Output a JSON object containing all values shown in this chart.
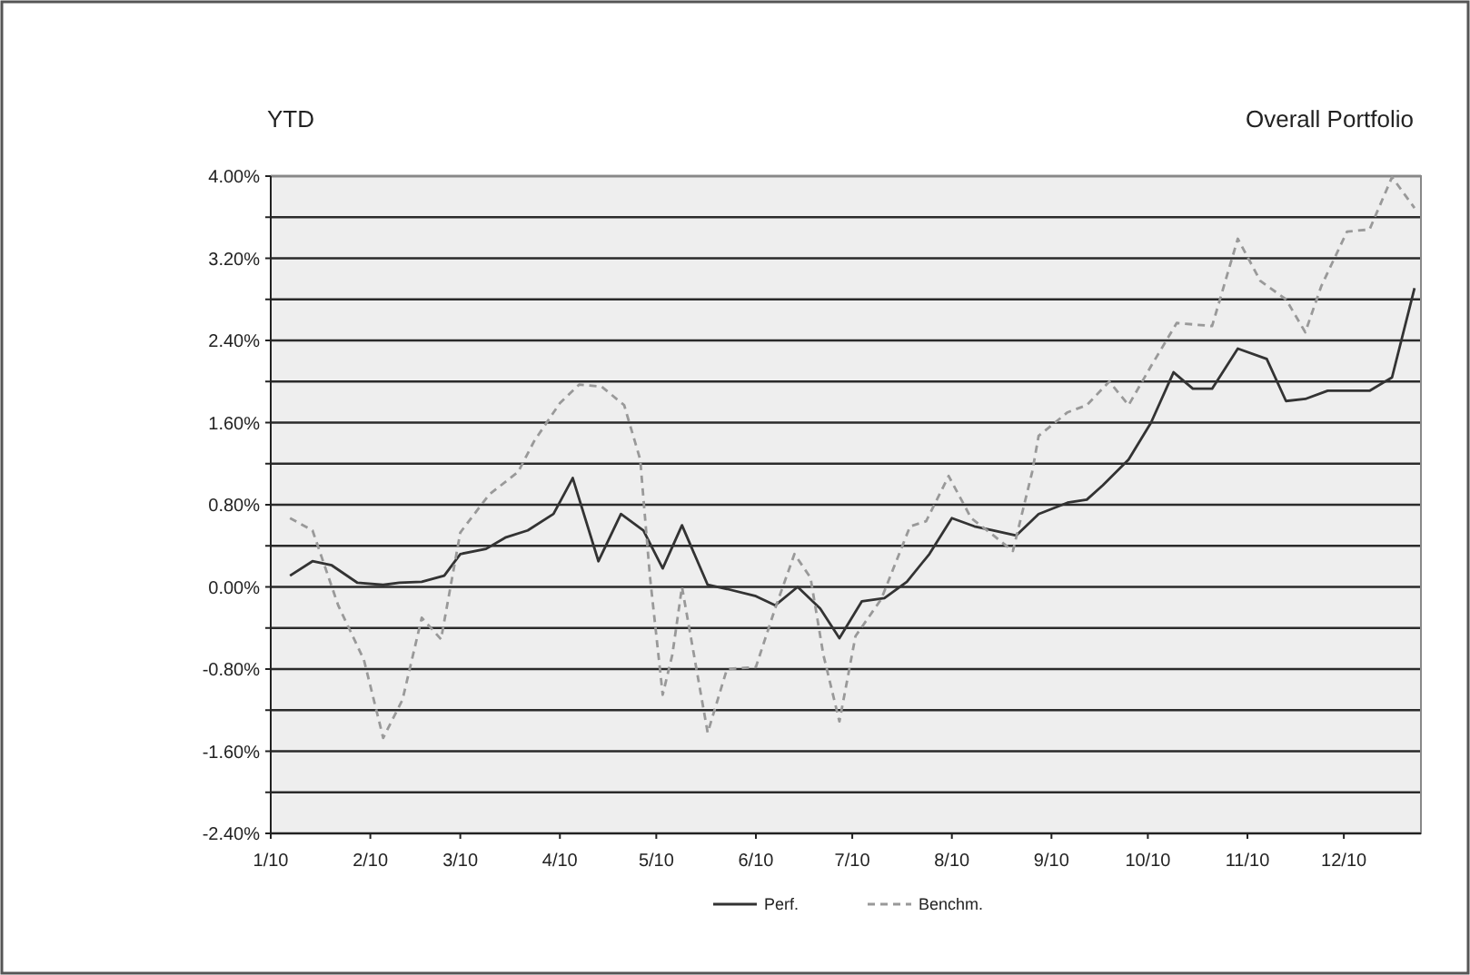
{
  "chart_data": {
    "type": "line",
    "title": "YTD",
    "subtitle": "Overall Portfolio",
    "grid": "y",
    "legend": "bottom",
    "xlim": [
      "2010-01-01",
      "2010-12-25"
    ],
    "xticks": [
      {
        "value": "2010-01-01",
        "label": "1/10"
      },
      {
        "value": "2010-02-01",
        "label": "2/10"
      },
      {
        "value": "2010-03-01",
        "label": "3/10"
      },
      {
        "value": "2010-04-01",
        "label": "4/10"
      },
      {
        "value": "2010-05-01",
        "label": "5/10"
      },
      {
        "value": "2010-06-01",
        "label": "6/10"
      },
      {
        "value": "2010-07-01",
        "label": "7/10"
      },
      {
        "value": "2010-08-01",
        "label": "8/10"
      },
      {
        "value": "2010-09-01",
        "label": "9/10"
      },
      {
        "value": "2010-10-01",
        "label": "10/10"
      },
      {
        "value": "2010-11-01",
        "label": "11/10"
      },
      {
        "value": "2010-12-01",
        "label": "12/10"
      }
    ],
    "ylim": [
      -2.4,
      4.0
    ],
    "yticks": [
      {
        "value": -2.4,
        "label": "-2.40%"
      },
      {
        "value": -2.0,
        "label": null
      },
      {
        "value": -1.6,
        "label": "-1.60%"
      },
      {
        "value": -1.2,
        "label": null
      },
      {
        "value": -0.8,
        "label": "-0.80%"
      },
      {
        "value": -0.4,
        "label": null
      },
      {
        "value": 0,
        "label": "0.00%"
      },
      {
        "value": 0.4,
        "label": null
      },
      {
        "value": 0.8,
        "label": "0.80%"
      },
      {
        "value": 1.2,
        "label": null
      },
      {
        "value": 1.6,
        "label": "1.60%"
      },
      {
        "value": 2.0,
        "label": null
      },
      {
        "value": 2.4,
        "label": "2.40%"
      },
      {
        "value": 2.8,
        "label": null
      },
      {
        "value": 3.2,
        "label": "3.20%"
      },
      {
        "value": 3.6,
        "label": null
      },
      {
        "value": 4.0,
        "label": "4.00%"
      }
    ],
    "series": [
      {
        "name": "Perf.",
        "color": "#333333",
        "line_style": "solid",
        "x": [
          "2010-01-07",
          "2010-01-14",
          "2010-01-20",
          "2010-01-28",
          "2010-02-05",
          "2010-02-10",
          "2010-02-17",
          "2010-02-24",
          "2010-03-01",
          "2010-03-09",
          "2010-03-15",
          "2010-03-22",
          "2010-03-30",
          "2010-04-05",
          "2010-04-13",
          "2010-04-20",
          "2010-04-27",
          "2010-05-03",
          "2010-05-09",
          "2010-05-17",
          "2010-05-23",
          "2010-06-01",
          "2010-06-07",
          "2010-06-14",
          "2010-06-21",
          "2010-06-27",
          "2010-07-04",
          "2010-07-11",
          "2010-07-18",
          "2010-07-25",
          "2010-08-01",
          "2010-08-08",
          "2010-08-14",
          "2010-08-21",
          "2010-08-28",
          "2010-09-06",
          "2010-09-12",
          "2010-09-17",
          "2010-09-25",
          "2010-10-02",
          "2010-10-09",
          "2010-10-15",
          "2010-10-21",
          "2010-10-29",
          "2010-11-07",
          "2010-11-13",
          "2010-11-19",
          "2010-11-26",
          "2010-12-09",
          "2010-12-16",
          "2010-12-23"
        ],
        "values": [
          0.11,
          0.25,
          0.21,
          0.04,
          0.02,
          0.04,
          0.05,
          0.11,
          0.32,
          0.37,
          0.48,
          0.55,
          0.71,
          1.06,
          0.25,
          0.71,
          0.55,
          0.18,
          0.6,
          0.02,
          -0.02,
          -0.09,
          -0.18,
          0.0,
          -0.21,
          -0.5,
          -0.14,
          -0.11,
          0.05,
          0.32,
          0.67,
          0.59,
          0.55,
          0.5,
          0.71,
          0.82,
          0.85,
          0.99,
          1.24,
          1.6,
          2.09,
          1.93,
          1.93,
          2.32,
          2.22,
          1.81,
          1.83,
          1.91,
          1.91,
          2.04,
          2.91
        ]
      },
      {
        "name": "Benchm.",
        "color": "#999999",
        "line_style": "dashed",
        "x": [
          "2010-01-07",
          "2010-01-14",
          "2010-01-22",
          "2010-01-30",
          "2010-02-05",
          "2010-02-11",
          "2010-02-17",
          "2010-02-23",
          "2010-03-01",
          "2010-03-10",
          "2010-03-19",
          "2010-03-24",
          "2010-04-01",
          "2010-04-07",
          "2010-04-14",
          "2010-04-21",
          "2010-04-26",
          "2010-04-29",
          "2010-05-03",
          "2010-05-06",
          "2010-05-09",
          "2010-05-17",
          "2010-05-23",
          "2010-06-01",
          "2010-06-07",
          "2010-06-13",
          "2010-06-18",
          "2010-06-22",
          "2010-06-27",
          "2010-07-02",
          "2010-07-10",
          "2010-07-19",
          "2010-07-24",
          "2010-07-31",
          "2010-08-07",
          "2010-08-14",
          "2010-08-20",
          "2010-08-26",
          "2010-08-28",
          "2010-09-06",
          "2010-09-12",
          "2010-09-19",
          "2010-09-25",
          "2010-10-02",
          "2010-10-10",
          "2010-10-21",
          "2010-10-29",
          "2010-11-05",
          "2010-11-13",
          "2010-11-19",
          "2010-11-24",
          "2010-12-02",
          "2010-12-09",
          "2010-12-16",
          "2010-12-23"
        ],
        "values": [
          0.67,
          0.55,
          -0.18,
          -0.71,
          -1.47,
          -1.1,
          -0.3,
          -0.51,
          0.53,
          0.9,
          1.12,
          1.42,
          1.79,
          1.97,
          1.95,
          1.77,
          1.24,
          0.11,
          -1.05,
          -0.66,
          0.0,
          -1.42,
          -0.8,
          -0.78,
          -0.21,
          0.32,
          0.09,
          -0.66,
          -1.31,
          -0.48,
          -0.12,
          0.59,
          0.64,
          1.08,
          0.67,
          0.5,
          0.35,
          1.12,
          1.47,
          1.7,
          1.77,
          2.0,
          1.77,
          2.15,
          2.57,
          2.54,
          3.39,
          2.98,
          2.8,
          2.48,
          2.93,
          3.46,
          3.48,
          3.99,
          3.69
        ]
      }
    ]
  }
}
